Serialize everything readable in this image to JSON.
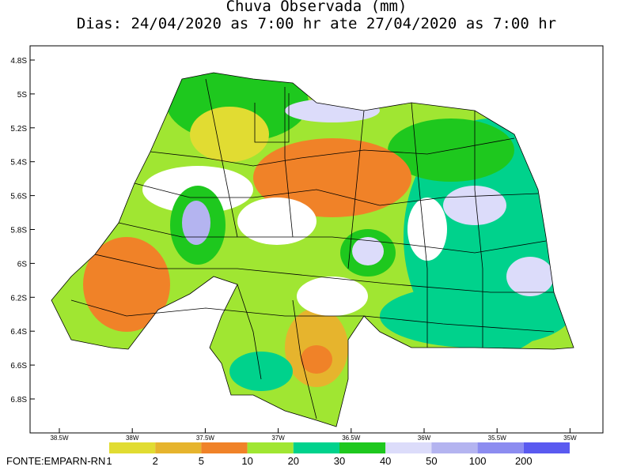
{
  "header": {
    "title": "Chuva Observada (mm)",
    "subtitle": "Dias: 24/04/2020 as 7:00 hr ate 27/04/2020 as 7:00 hr"
  },
  "lat_labels": [
    "4.8S",
    "5S",
    "5.2S",
    "5.4S",
    "5.6S",
    "5.8S",
    "6S",
    "6.2S",
    "6.4S",
    "6.6S",
    "6.8S"
  ],
  "lon_labels": [
    "38.5W",
    "38W",
    "37.5W",
    "37W",
    "36.5W",
    "36W",
    "35.5W",
    "35W"
  ],
  "legend": {
    "labels": [
      "1",
      "2",
      "5",
      "10",
      "20",
      "30",
      "40",
      "50",
      "100",
      "200"
    ]
  },
  "source": "FONTE:EMPARN-RN"
}
